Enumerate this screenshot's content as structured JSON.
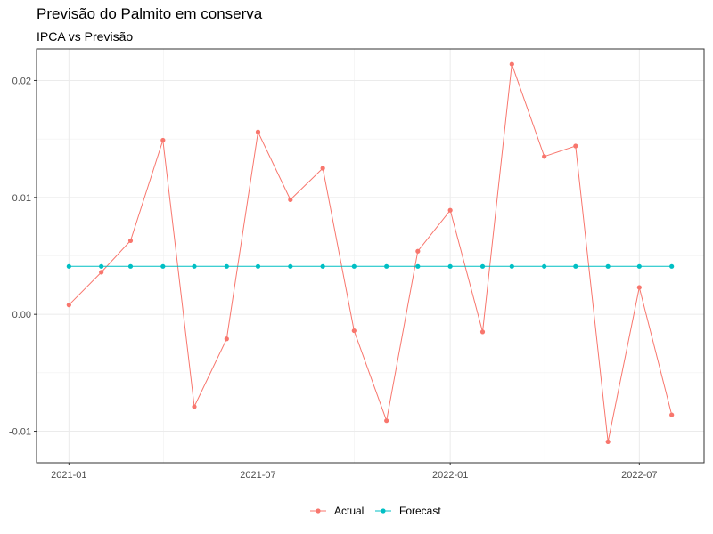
{
  "chart_data": {
    "type": "line",
    "title": "Previsão do Palmito em conserva",
    "subtitle": "IPCA vs Previsão",
    "xlabel": "",
    "ylabel": "",
    "x": [
      "2021-01-01",
      "2021-02-01",
      "2021-03-01",
      "2021-04-01",
      "2021-05-01",
      "2021-06-01",
      "2021-07-01",
      "2021-08-01",
      "2021-09-01",
      "2021-10-01",
      "2021-11-01",
      "2021-12-01",
      "2022-01-01",
      "2022-02-01",
      "2022-03-01",
      "2022-04-01",
      "2022-05-01",
      "2022-06-01",
      "2022-07-01",
      "2022-08-01"
    ],
    "x_tick_labels": [
      "2021-01",
      "2021-07",
      "2022-01",
      "2022-07"
    ],
    "x_tick_values": [
      "2021-01-01",
      "2021-07-01",
      "2022-01-01",
      "2022-07-01"
    ],
    "xlim": [
      "2020-12-01",
      "2022-09-01"
    ],
    "y_tick_labels": [
      "-0.01",
      "0.00",
      "0.01",
      "0.02"
    ],
    "y_tick_values": [
      -0.01,
      0.0,
      0.01,
      0.02
    ],
    "ylim": [
      -0.0127,
      0.0227
    ],
    "grid": true,
    "legend_position": "bottom",
    "series": [
      {
        "name": "Actual",
        "color": "#F8766D",
        "values": [
          0.0008,
          0.0036,
          0.0063,
          0.0149,
          -0.0079,
          -0.0021,
          0.0156,
          0.0098,
          0.0125,
          -0.0014,
          -0.0091,
          0.0054,
          0.0089,
          -0.0015,
          0.0214,
          0.0135,
          0.0144,
          -0.0109,
          0.0023,
          -0.0086
        ]
      },
      {
        "name": "Forecast",
        "color": "#00BFC4",
        "values": [
          0.0041,
          0.0041,
          0.0041,
          0.0041,
          0.0041,
          0.0041,
          0.0041,
          0.0041,
          0.0041,
          0.0041,
          0.0041,
          0.0041,
          0.0041,
          0.0041,
          0.0041,
          0.0041,
          0.0041,
          0.0041,
          0.0041,
          0.0041
        ]
      }
    ]
  }
}
